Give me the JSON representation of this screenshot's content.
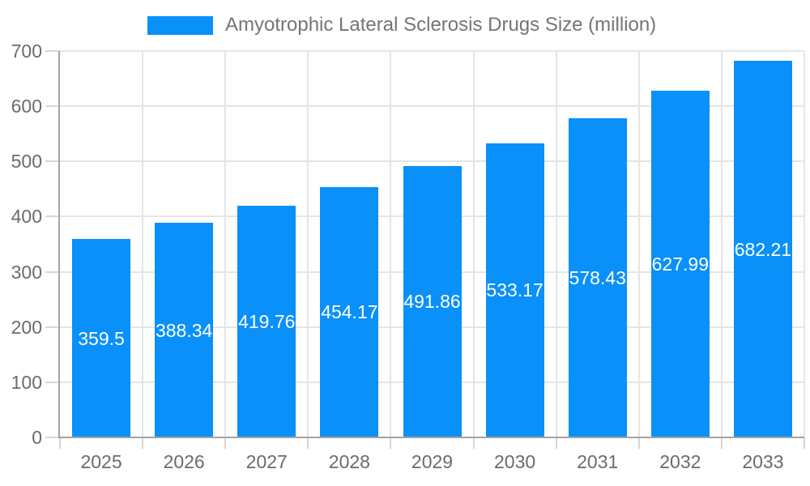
{
  "legend": {
    "label": "Amyotrophic Lateral Sclerosis Drugs Size (million)",
    "swatch_color": "#0a90f9"
  },
  "chart_data": {
    "type": "bar",
    "title": "Amyotrophic Lateral Sclerosis Drugs Size (million)",
    "categories": [
      "2025",
      "2026",
      "2027",
      "2028",
      "2029",
      "2030",
      "2031",
      "2032",
      "2033"
    ],
    "values": [
      359.5,
      388.34,
      419.76,
      454.17,
      491.86,
      533.17,
      578.43,
      627.99,
      682.21
    ],
    "yticks": [
      0,
      100,
      200,
      300,
      400,
      500,
      600,
      700
    ],
    "ylim": [
      0,
      700
    ],
    "xlabel": "",
    "ylabel": "",
    "grid": true,
    "legend_position": "top-center",
    "colors": {
      "bar": "#0a90f9",
      "grid": "#e5e5e5",
      "axis": "#a3a3a3",
      "tick": "#d6d6d6",
      "axis_text": "#6b6b6b",
      "legend_text": "#757575",
      "value_label": "#ffffff"
    }
  }
}
